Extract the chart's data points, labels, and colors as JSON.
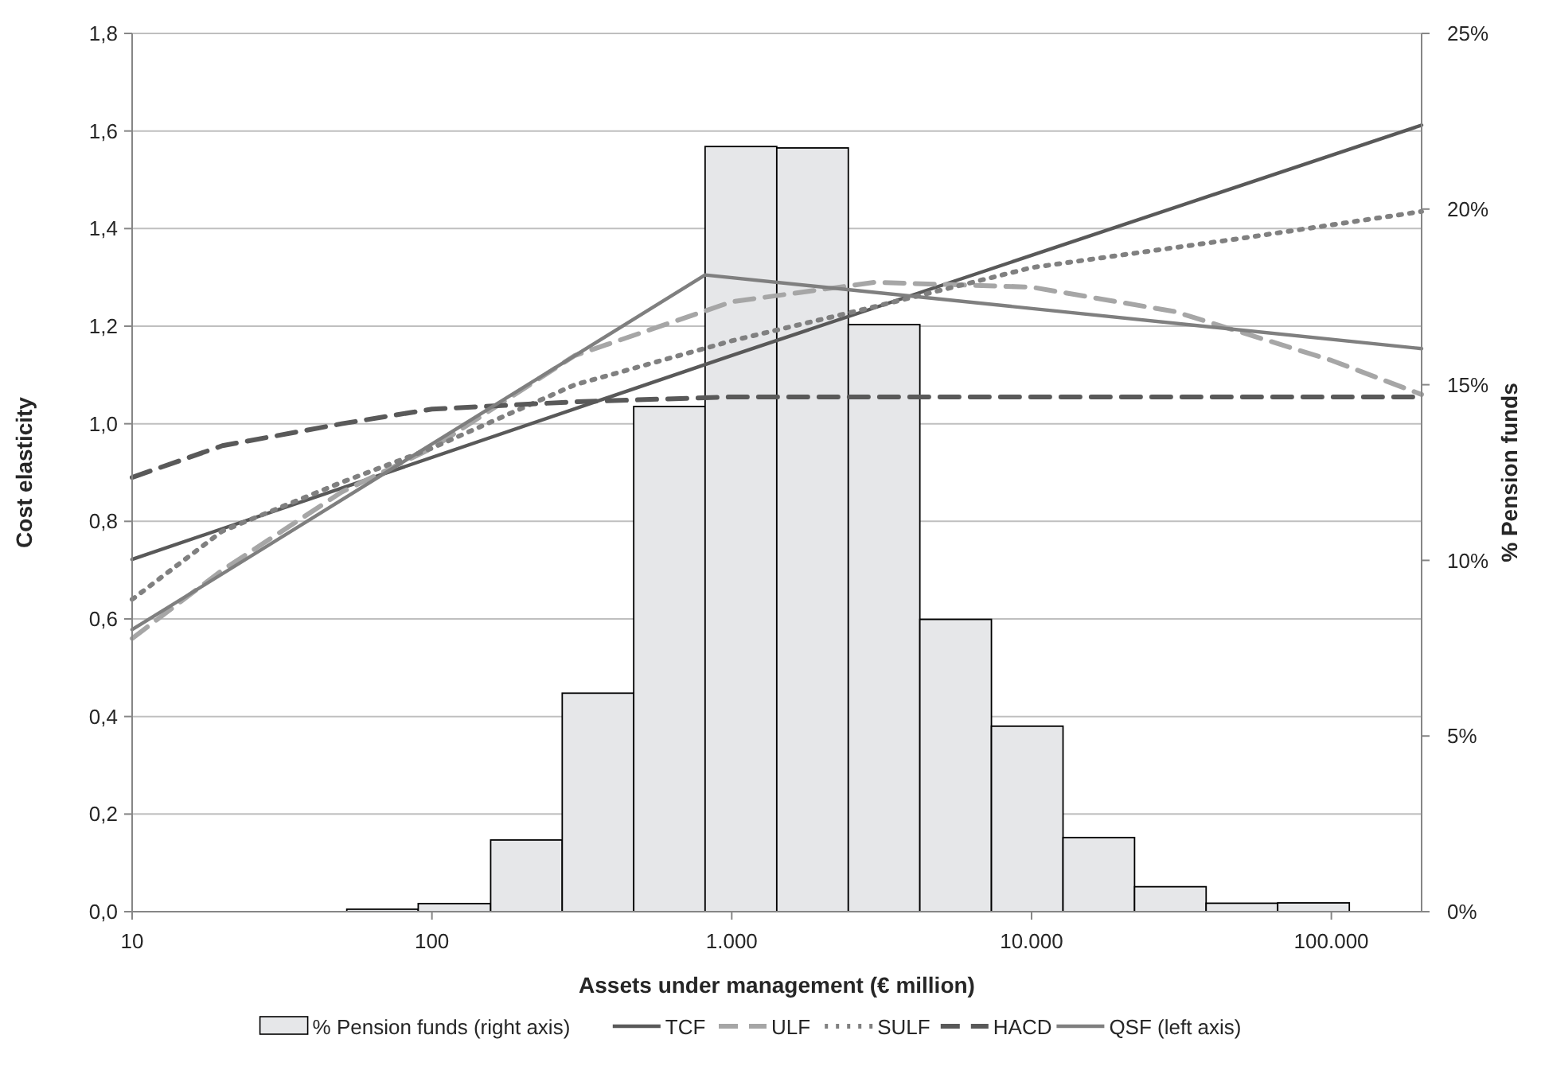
{
  "chart_data": {
    "type": "line",
    "xlabel": "Assets under management (€ million)",
    "ylabel": "Cost elasticity",
    "y2label": "% Pension funds",
    "log": "x",
    "grid": "y",
    "legend": "bottom",
    "xlim": [
      10,
      200000
    ],
    "xticks": [
      10,
      100,
      {
        "value": 1000,
        "label": "1.000"
      },
      {
        "value": 10000,
        "label": "10.000"
      },
      {
        "value": 100000,
        "label": "100.000"
      }
    ],
    "ylim": [
      0,
      1.8
    ],
    "yticks": [
      {
        "value": 0,
        "label": "0,0"
      },
      {
        "value": 0.2,
        "label": "0,2"
      },
      {
        "value": 0.4,
        "label": "0,4"
      },
      {
        "value": 0.6,
        "label": "0,6"
      },
      {
        "value": 0.8,
        "label": "0,8"
      },
      {
        "value": 1,
        "label": "1,0"
      },
      {
        "value": 1.2,
        "label": "1,2"
      },
      {
        "value": 1.4,
        "label": "1,4"
      },
      {
        "value": 1.6,
        "label": "1,6"
      },
      {
        "value": 1.8,
        "label": "1,8"
      }
    ],
    "y2lim": [
      0,
      25
    ],
    "y2ticks": [
      {
        "value": 0,
        "label": "0%"
      },
      {
        "value": 5,
        "label": "5%"
      },
      {
        "value": 10,
        "label": "10%"
      },
      {
        "value": 15,
        "label": "15%"
      },
      {
        "value": 20,
        "label": "20%"
      },
      {
        "value": 25,
        "label": "25%"
      }
    ],
    "series": [
      {
        "name": "% Pension funds (right axis)",
        "type": "histogram",
        "axis": "y2",
        "color": "#e6e7e9",
        "bins": [
          52,
          90,
          157,
          272,
          471,
          815,
          1413,
          2448,
          4241,
          7348,
          12735,
          22060,
          38220,
          66230,
          114800
        ],
        "values": [
          0.07,
          0.23,
          2.04,
          6.22,
          14.38,
          21.78,
          21.74,
          16.71,
          8.32,
          5.28,
          2.11,
          0.71,
          0.24,
          0.25
        ]
      },
      {
        "name": "TCF",
        "line_style": "solid",
        "color": "#595959",
        "x": [
          10,
          1000,
          200000
        ],
        "values": [
          0.722,
          1.14,
          1.612
        ]
      },
      {
        "name": "ULF",
        "line_style": "dashed",
        "color": "#a6a6a6",
        "x": [
          10,
          20,
          50,
          100,
          300,
          1000,
          3000,
          10000,
          30000,
          100000,
          200000
        ],
        "values": [
          0.56,
          0.7,
          0.86,
          0.95,
          1.14,
          1.25,
          1.29,
          1.28,
          1.23,
          1.13,
          1.06
        ]
      },
      {
        "name": "SULF",
        "line_style": "dotted",
        "color": "#808080",
        "x": [
          10,
          20,
          50,
          100,
          300,
          1000,
          3000,
          10000,
          50000,
          200000
        ],
        "values": [
          0.64,
          0.78,
          0.88,
          0.95,
          1.08,
          1.17,
          1.24,
          1.32,
          1.38,
          1.435
        ]
      },
      {
        "name": "HACD",
        "line_style": "dashed",
        "color": "#595959",
        "x": [
          10,
          20,
          50,
          100,
          300,
          1000,
          200000
        ],
        "values": [
          0.89,
          0.955,
          1.0,
          1.03,
          1.045,
          1.055,
          1.055
        ]
      },
      {
        "name": "QSF (left axis)",
        "line_style": "solid",
        "color": "#7f7f7f",
        "x": [
          10,
          815,
          200000
        ],
        "values": [
          0.578,
          1.305,
          1.154
        ]
      }
    ]
  }
}
